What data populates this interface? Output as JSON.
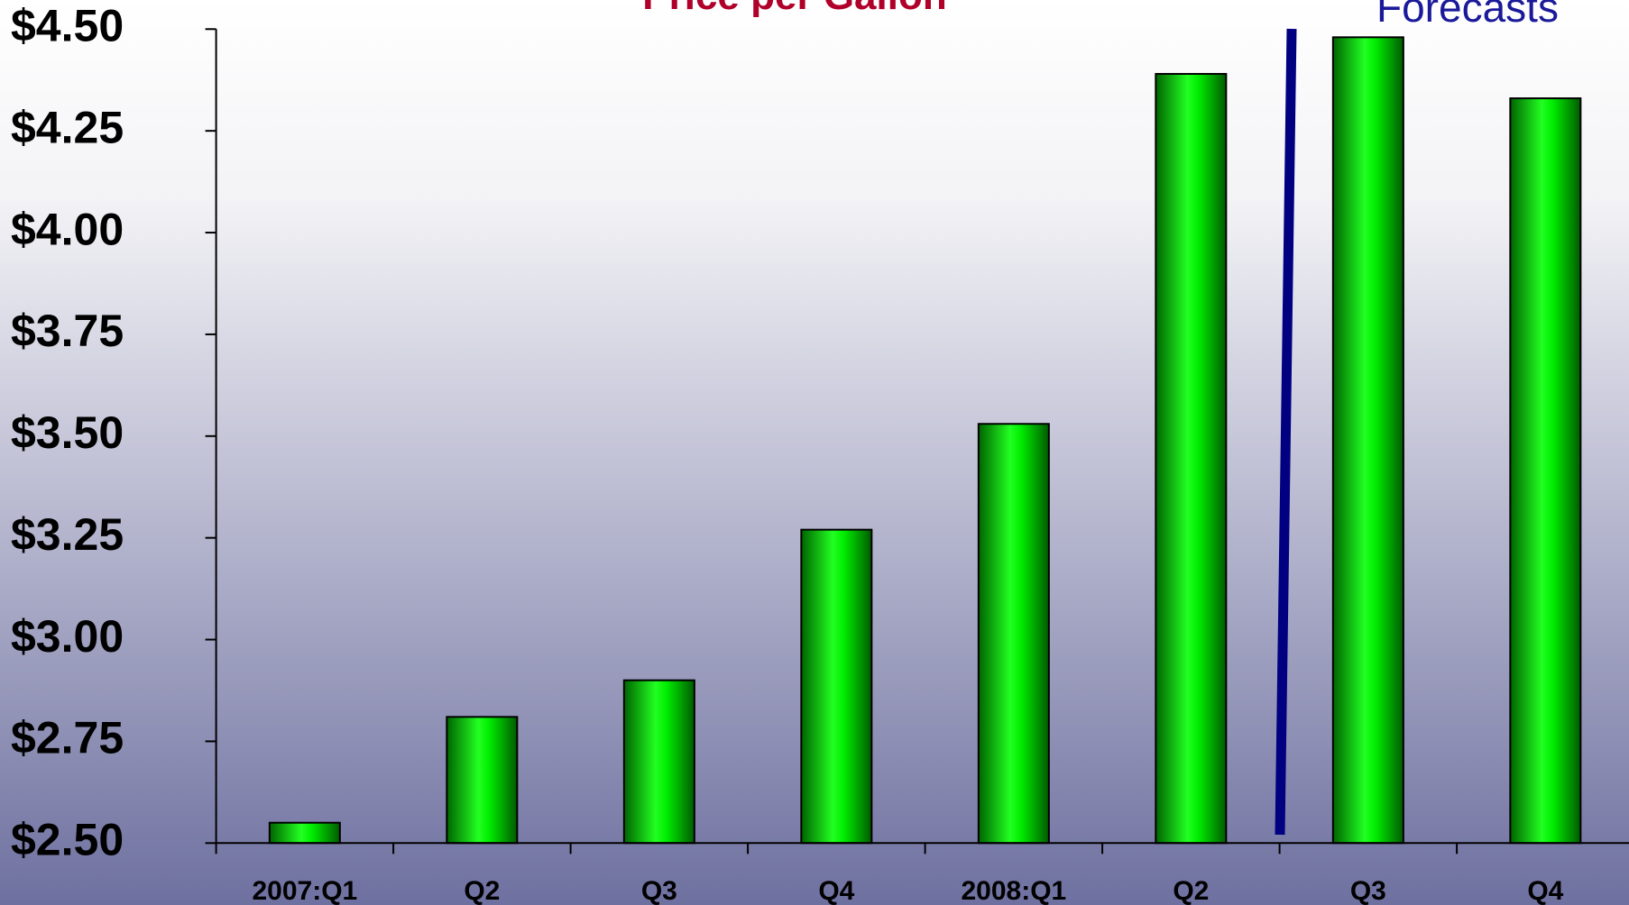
{
  "chart_data": {
    "type": "bar",
    "title": "Price per Gallon",
    "annotation": "Forecasts",
    "categories": [
      "2007:Q1",
      "Q2",
      "Q3",
      "Q4",
      "2008:Q1",
      "Q2",
      "Q3",
      "Q4"
    ],
    "values": [
      2.55,
      2.81,
      2.9,
      3.27,
      3.53,
      4.39,
      4.48,
      4.33
    ],
    "color": "#00ff00",
    "ylim": [
      2.5,
      4.5
    ],
    "yticks": [
      {
        "value": 2.5,
        "label": "$2.50"
      },
      {
        "value": 2.75,
        "label": "$2.75"
      },
      {
        "value": 3.0,
        "label": "$3.00"
      },
      {
        "value": 3.25,
        "label": "$3.25"
      },
      {
        "value": 3.5,
        "label": "$3.50"
      },
      {
        "value": 3.75,
        "label": "$3.75"
      },
      {
        "value": 4.0,
        "label": "$4.00"
      },
      {
        "value": 4.25,
        "label": "$4.25"
      },
      {
        "value": 4.5,
        "label": "$4.50"
      }
    ],
    "grid": false
  }
}
